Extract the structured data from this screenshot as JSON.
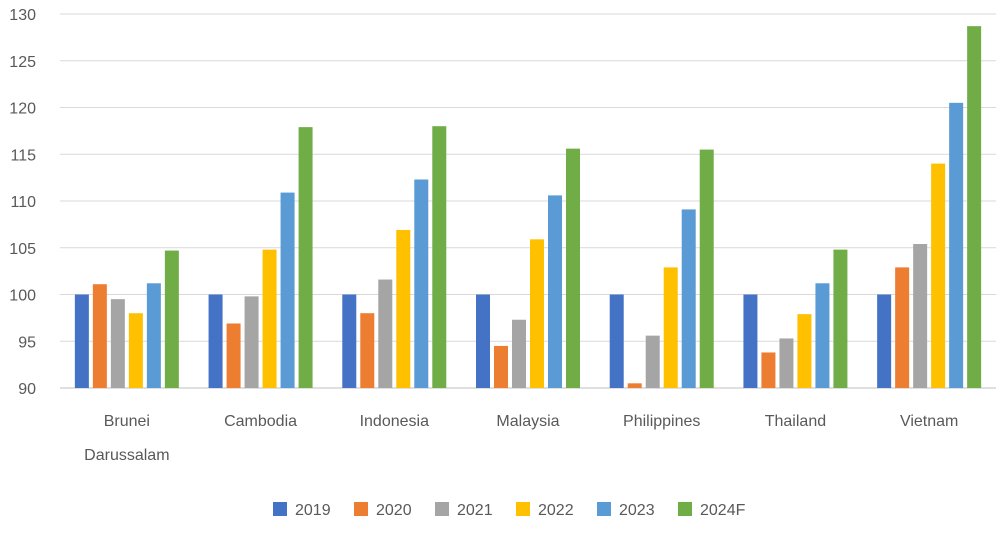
{
  "chart_data": {
    "type": "bar",
    "title": "",
    "xlabel": "",
    "ylabel": "",
    "ylim": [
      90,
      130
    ],
    "ytick_step": 5,
    "grid": true,
    "legend_position": "bottom",
    "categories": [
      [
        "Brunei",
        "Darussalam"
      ],
      [
        "Cambodia"
      ],
      [
        "Indonesia"
      ],
      [
        "Malaysia"
      ],
      [
        "Philippines"
      ],
      [
        "Thailand"
      ],
      [
        "Vietnam"
      ]
    ],
    "series": [
      {
        "name": "2019",
        "color": "#4472C4",
        "values": [
          100,
          100,
          100,
          100,
          100,
          100,
          100
        ]
      },
      {
        "name": "2020",
        "color": "#ED7D31",
        "values": [
          101.1,
          96.9,
          98.0,
          94.5,
          90.5,
          93.8,
          102.9
        ]
      },
      {
        "name": "2021",
        "color": "#A5A5A5",
        "values": [
          99.5,
          99.8,
          101.6,
          97.3,
          95.6,
          95.3,
          105.4
        ]
      },
      {
        "name": "2022",
        "color": "#FFC000",
        "values": [
          98.0,
          104.8,
          106.9,
          105.9,
          102.9,
          97.9,
          114.0
        ]
      },
      {
        "name": "2023",
        "color": "#5B9BD5",
        "values": [
          101.2,
          110.9,
          112.3,
          110.6,
          109.1,
          101.2,
          120.5
        ]
      },
      {
        "name": "2024F",
        "color": "#70AD47",
        "values": [
          104.7,
          117.9,
          118.0,
          115.6,
          115.5,
          104.8,
          128.7
        ]
      }
    ]
  }
}
